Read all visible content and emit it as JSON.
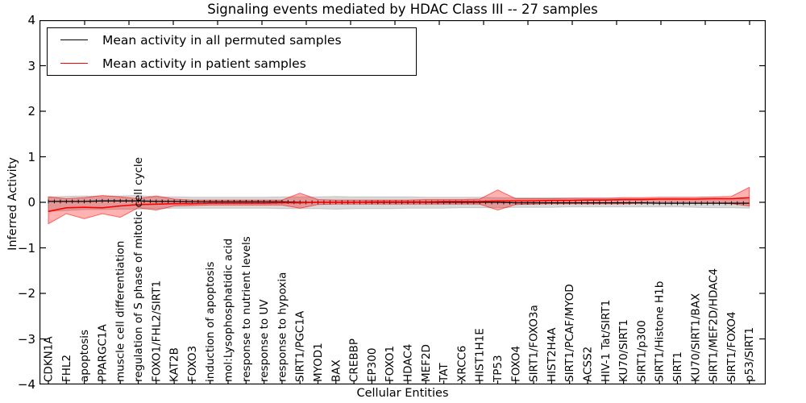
{
  "figure": {
    "title": "Signaling events mediated by HDAC Class III -- 27 samples",
    "xlabel": "Cellular Entities",
    "ylabel": "Inferred Activity"
  },
  "legend": {
    "entries": [
      {
        "label": "Mean activity in all permuted samples",
        "color": "#000000"
      },
      {
        "label": "Mean activity in patient samples",
        "color": "#ff0000"
      }
    ],
    "position": "upper left"
  },
  "chart_data": {
    "type": "line",
    "title": "Signaling events mediated by HDAC Class III -- 27 samples",
    "xlabel": "Cellular Entities",
    "ylabel": "Inferred Activity",
    "ylim": [
      -4,
      4
    ],
    "yticks": [
      4,
      3,
      2,
      1,
      0,
      -1,
      -2,
      -3,
      -4
    ],
    "grid": false,
    "legend_position": "upper left",
    "x_tick_label_rotation": 90,
    "categories": [
      "CDKN1A",
      "FHL2",
      "apoptosis",
      "PPARGC1A",
      "muscle cell differentiation",
      "regulation of S phase of mitotic cell cycle",
      "FOXO1/FHL2/SIRT1",
      "KAT2B",
      "FOXO3",
      "induction of apoptosis",
      "mol:Lysophosphatidic acid",
      "response to nutrient levels",
      "response to UV",
      "response to hypoxia",
      "SIRT1/PGC1A",
      "MYOD1",
      "BAX",
      "CREBBP",
      "EP300",
      "FOXO1",
      "HDAC4",
      "MEF2D",
      "TAT",
      "XRCC6",
      "HIST1H1E",
      "TP53",
      "FOXO4",
      "SIRT1/FOXO3a",
      "HIST2H4A",
      "SIRT1/PCAF/MYOD",
      "ACSS2",
      "HIV-1 Tat/SIRT1",
      "KU70/SIRT1",
      "SIRT1/p300",
      "SIRT1/Histone H1b",
      "SIRT1",
      "KU70/SIRT1/BAX",
      "SIRT1/MEF2D/HDAC4",
      "SIRT1/FOXO4",
      "p53/SIRT1"
    ],
    "series": [
      {
        "name": "Mean activity in all permuted samples",
        "color": "#000000",
        "values": [
          0.02,
          0.02,
          0.02,
          0.03,
          0.03,
          0.03,
          0.02,
          0.02,
          0.01,
          0.01,
          0.01,
          0.01,
          0.01,
          0.01,
          0.0,
          0.0,
          0.0,
          0.0,
          0.0,
          0.0,
          0.0,
          0.0,
          0.0,
          0.0,
          0.0,
          0.0,
          -0.01,
          -0.01,
          -0.01,
          -0.01,
          -0.01,
          -0.01,
          -0.01,
          -0.01,
          -0.02,
          -0.02,
          -0.02,
          -0.02,
          -0.02,
          -0.02
        ]
      },
      {
        "name": "Mean activity in patient samples",
        "color": "#ff0000",
        "values": [
          -0.2,
          -0.12,
          -0.11,
          -0.12,
          -0.08,
          -0.05,
          -0.04,
          -0.03,
          -0.03,
          -0.02,
          -0.02,
          -0.02,
          -0.02,
          -0.01,
          -0.01,
          0.0,
          0.0,
          0.0,
          0.01,
          0.01,
          0.01,
          0.01,
          0.02,
          0.02,
          0.02,
          0.03,
          0.03,
          0.03,
          0.04,
          0.04,
          0.05,
          0.05,
          0.06,
          0.06,
          0.07,
          0.07,
          0.07,
          0.08,
          0.08,
          0.1
        ]
      }
    ],
    "bands": [
      {
        "name": "permuted samples activity range",
        "fill": "#808080",
        "fill_opacity": 0.3,
        "edge": "#999999",
        "edge_opacity": 0.45,
        "low": [
          -0.2,
          -0.18,
          -0.16,
          -0.16,
          -0.15,
          -0.15,
          -0.14,
          -0.13,
          -0.13,
          -0.13,
          -0.13,
          -0.13,
          -0.13,
          -0.14,
          -0.14,
          -0.14,
          -0.15,
          -0.14,
          -0.14,
          -0.14,
          -0.13,
          -0.13,
          -0.13,
          -0.12,
          -0.12,
          -0.12,
          -0.11,
          -0.11,
          -0.11,
          -0.1,
          -0.1,
          -0.1,
          -0.1,
          -0.1,
          -0.1,
          -0.1,
          -0.11,
          -0.12,
          -0.12,
          -0.13
        ],
        "high": [
          0.12,
          0.13,
          0.14,
          0.13,
          0.14,
          0.15,
          0.12,
          0.12,
          0.11,
          0.11,
          0.11,
          0.11,
          0.11,
          0.12,
          0.12,
          0.12,
          0.13,
          0.12,
          0.12,
          0.12,
          0.12,
          0.11,
          0.11,
          0.11,
          0.11,
          0.1,
          0.1,
          0.1,
          0.1,
          0.09,
          0.09,
          0.09,
          0.08,
          0.08,
          0.08,
          0.08,
          0.07,
          0.07,
          0.07,
          0.07
        ]
      },
      {
        "name": "patient samples activity range",
        "fill": "#ff0000",
        "fill_opacity": 0.3,
        "edge": "#ff0000",
        "edge_opacity": 0.55,
        "low": [
          -0.47,
          -0.25,
          -0.36,
          -0.25,
          -0.33,
          -0.12,
          -0.17,
          -0.08,
          -0.07,
          -0.06,
          -0.06,
          -0.06,
          -0.06,
          -0.06,
          -0.13,
          -0.05,
          -0.04,
          -0.04,
          -0.04,
          -0.04,
          -0.04,
          -0.04,
          -0.04,
          -0.04,
          -0.04,
          -0.17,
          -0.05,
          -0.04,
          -0.03,
          -0.03,
          -0.03,
          -0.03,
          -0.03,
          -0.02,
          -0.02,
          -0.02,
          -0.02,
          -0.02,
          -0.03,
          -0.08
        ],
        "high": [
          0.12,
          0.08,
          0.1,
          0.15,
          0.12,
          0.08,
          0.14,
          0.07,
          0.05,
          0.05,
          0.05,
          0.05,
          0.05,
          0.05,
          0.2,
          0.06,
          0.05,
          0.05,
          0.05,
          0.05,
          0.05,
          0.06,
          0.06,
          0.06,
          0.07,
          0.27,
          0.08,
          0.08,
          0.08,
          0.09,
          0.09,
          0.09,
          0.1,
          0.1,
          0.11,
          0.11,
          0.11,
          0.12,
          0.13,
          0.33
        ]
      }
    ]
  }
}
